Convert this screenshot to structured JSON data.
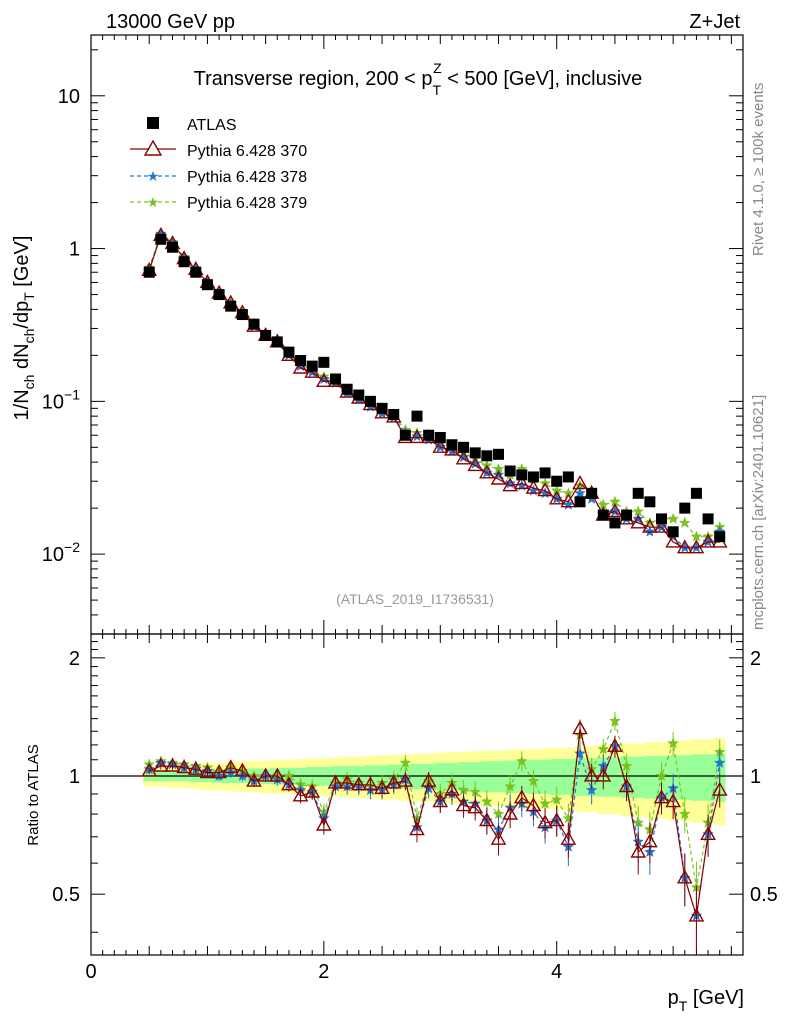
{
  "header": {
    "left": "13000 GeV pp",
    "right": "Z+Jet"
  },
  "side_labels": {
    "rivet": "Rivet 4.1.0, ≥ 100k events",
    "mcplots": "mcplots.cern.ch [arXiv:2401.10621]"
  },
  "colors": {
    "atlas": "#000000",
    "p370": "#8b0000",
    "p378": "#1e78d2",
    "p379": "#7ac31e",
    "band_yellow": "#ffff99",
    "band_green": "#99ff99"
  },
  "chart_data": [
    {
      "type": "scatter",
      "title": "Transverse region, 200 < p_T^Z < 500 [GeV], inclusive",
      "title_parts": {
        "pre": "Transverse region, 200 < p",
        "sup": "Z",
        "sub": "T",
        "post": " < 500 [GeV], inclusive"
      },
      "ylabel": "1/N_ch dN_ch/dp_T [GeV]",
      "ylabel_parts": {
        "a": "1/N",
        "b": "ch",
        "c": " dN",
        "d": "ch",
        "e": "/dp",
        "f": "T",
        "g": " [GeV]"
      },
      "yscale": "log",
      "xlim": [
        0,
        5.6
      ],
      "ylim": [
        0.003,
        25
      ],
      "yticks": [
        {
          "v": 0.01,
          "base": "10",
          "exp": "−2"
        },
        {
          "v": 0.1,
          "base": "10",
          "exp": "−1"
        },
        {
          "v": 1,
          "label": "1"
        },
        {
          "v": 10,
          "label": "10"
        }
      ],
      "watermark": "(ATLAS_2019_I1736531)",
      "legend": [
        {
          "name": "ATLAS",
          "marker": "square",
          "color": "#000000"
        },
        {
          "name": "Pythia 6.428 370",
          "marker": "triangle",
          "color": "#8b0000"
        },
        {
          "name": "Pythia 6.428 378",
          "marker": "star",
          "color": "#1e78d2"
        },
        {
          "name": "Pythia 6.428 379",
          "marker": "star",
          "color": "#7ac31e"
        }
      ],
      "x": [
        0.5,
        0.6,
        0.7,
        0.8,
        0.9,
        1.0,
        1.1,
        1.2,
        1.3,
        1.4,
        1.5,
        1.6,
        1.7,
        1.8,
        1.9,
        2.0,
        2.1,
        2.2,
        2.3,
        2.4,
        2.5,
        2.6,
        2.7,
        2.8,
        2.9,
        3.0,
        3.1,
        3.2,
        3.3,
        3.4,
        3.5,
        3.6,
        3.7,
        3.8,
        3.9,
        4.0,
        4.1,
        4.2,
        4.3,
        4.4,
        4.5,
        4.6,
        4.7,
        4.8,
        4.9,
        5.0,
        5.1,
        5.2,
        5.3,
        5.4
      ],
      "series": [
        {
          "name": "ATLAS",
          "values": [
            0.7,
            1.15,
            1.02,
            0.82,
            0.7,
            0.58,
            0.5,
            0.42,
            0.37,
            0.32,
            0.27,
            0.245,
            0.21,
            0.185,
            0.17,
            0.18,
            0.14,
            0.12,
            0.11,
            0.1,
            0.09,
            0.082,
            0.06,
            0.08,
            0.06,
            0.058,
            0.052,
            0.05,
            0.046,
            0.044,
            0.045,
            0.035,
            0.033,
            0.032,
            0.034,
            0.03,
            0.032,
            0.022,
            0.025,
            0.018,
            0.016,
            0.018,
            0.025,
            0.022,
            0.017,
            0.014,
            0.02,
            0.025,
            0.017,
            0.013
          ]
        },
        {
          "name": "Pythia 6.428 370",
          "values": [
            0.72,
            1.22,
            1.08,
            0.86,
            0.73,
            0.6,
            0.51,
            0.44,
            0.38,
            0.31,
            0.27,
            0.245,
            0.2,
            0.165,
            0.155,
            0.135,
            0.135,
            0.115,
            0.105,
            0.095,
            0.084,
            0.079,
            0.058,
            0.058,
            0.058,
            0.05,
            0.048,
            0.042,
            0.038,
            0.034,
            0.031,
            0.028,
            0.029,
            0.027,
            0.026,
            0.023,
            0.022,
            0.029,
            0.025,
            0.018,
            0.019,
            0.017,
            0.016,
            0.015,
            0.015,
            0.012,
            0.011,
            0.011,
            0.012,
            0.012
          ]
        },
        {
          "name": "Pythia 6.428 378",
          "values": [
            0.73,
            1.24,
            1.09,
            0.86,
            0.73,
            0.6,
            0.5,
            0.43,
            0.37,
            0.31,
            0.27,
            0.24,
            0.2,
            0.17,
            0.155,
            0.14,
            0.132,
            0.113,
            0.103,
            0.092,
            0.083,
            0.078,
            0.062,
            0.059,
            0.056,
            0.05,
            0.047,
            0.043,
            0.039,
            0.034,
            0.033,
            0.029,
            0.028,
            0.026,
            0.025,
            0.023,
            0.021,
            0.025,
            0.023,
            0.019,
            0.019,
            0.017,
            0.017,
            0.014,
            0.015,
            0.013,
            0.011,
            0.011,
            0.012,
            0.014
          ]
        },
        {
          "name": "Pythia 6.428 379",
          "values": [
            0.75,
            1.25,
            1.1,
            0.88,
            0.74,
            0.61,
            0.51,
            0.44,
            0.38,
            0.32,
            0.27,
            0.245,
            0.21,
            0.175,
            0.16,
            0.145,
            0.135,
            0.118,
            0.106,
            0.094,
            0.086,
            0.08,
            0.065,
            0.062,
            0.058,
            0.052,
            0.05,
            0.046,
            0.042,
            0.038,
            0.036,
            0.033,
            0.036,
            0.031,
            0.029,
            0.026,
            0.025,
            0.028,
            0.026,
            0.021,
            0.022,
            0.019,
            0.019,
            0.016,
            0.017,
            0.017,
            0.016,
            0.013,
            0.013,
            0.015
          ]
        }
      ]
    },
    {
      "type": "line",
      "title": "",
      "ylabel": "Ratio to ATLAS",
      "xlabel": "p_T [GeV]",
      "xlabel_parts": {
        "a": "p",
        "b": "T",
        "c": " [GeV]"
      },
      "xlim": [
        0,
        5.6
      ],
      "ylim": [
        0.35,
        2.3
      ],
      "xticks": [
        0,
        2,
        4
      ],
      "yticks": [
        0.5,
        1,
        2
      ],
      "x": [
        0.5,
        0.6,
        0.7,
        0.8,
        0.9,
        1.0,
        1.1,
        1.2,
        1.3,
        1.4,
        1.5,
        1.6,
        1.7,
        1.8,
        1.9,
        2.0,
        2.1,
        2.2,
        2.3,
        2.4,
        2.5,
        2.6,
        2.7,
        2.8,
        2.9,
        3.0,
        3.1,
        3.2,
        3.3,
        3.4,
        3.5,
        3.6,
        3.7,
        3.8,
        3.9,
        4.0,
        4.1,
        4.2,
        4.3,
        4.4,
        4.5,
        4.6,
        4.7,
        4.8,
        4.9,
        5.0,
        5.1,
        5.2,
        5.3,
        5.4
      ],
      "band_inner": [
        0.03,
        0.03,
        0.03,
        0.03,
        0.035,
        0.035,
        0.04,
        0.04,
        0.04,
        0.045,
        0.045,
        0.05,
        0.05,
        0.05,
        0.055,
        0.055,
        0.06,
        0.06,
        0.06,
        0.065,
        0.065,
        0.07,
        0.07,
        0.075,
        0.075,
        0.08,
        0.08,
        0.085,
        0.085,
        0.09,
        0.09,
        0.095,
        0.095,
        0.1,
        0.1,
        0.105,
        0.105,
        0.11,
        0.11,
        0.115,
        0.115,
        0.12,
        0.12,
        0.125,
        0.125,
        0.13,
        0.13,
        0.135,
        0.135,
        0.14
      ],
      "band_outer": [
        0.06,
        0.06,
        0.07,
        0.07,
        0.075,
        0.08,
        0.08,
        0.085,
        0.09,
        0.09,
        0.095,
        0.1,
        0.1,
        0.105,
        0.11,
        0.11,
        0.115,
        0.12,
        0.12,
        0.125,
        0.13,
        0.13,
        0.135,
        0.14,
        0.14,
        0.145,
        0.15,
        0.15,
        0.155,
        0.16,
        0.16,
        0.165,
        0.17,
        0.17,
        0.175,
        0.18,
        0.18,
        0.19,
        0.19,
        0.2,
        0.2,
        0.21,
        0.21,
        0.22,
        0.22,
        0.23,
        0.23,
        0.24,
        0.24,
        0.25
      ],
      "series": [
        {
          "name": "Pythia 6.428 370",
          "values": [
            1.03,
            1.06,
            1.06,
            1.05,
            1.04,
            1.02,
            1.02,
            1.05,
            1.03,
            0.97,
            1.0,
            1.0,
            0.95,
            0.89,
            0.91,
            0.75,
            0.96,
            0.96,
            0.95,
            0.95,
            0.93,
            0.96,
            0.97,
            0.73,
            0.97,
            0.86,
            0.92,
            0.84,
            0.83,
            0.77,
            0.69,
            0.8,
            0.88,
            0.84,
            0.76,
            0.77,
            0.69,
            1.32,
            1.0,
            1.0,
            1.19,
            0.94,
            0.64,
            0.68,
            0.88,
            0.86,
            0.55,
            0.44,
            0.71,
            0.92
          ]
        },
        {
          "name": "Pythia 6.428 378",
          "values": [
            1.04,
            1.08,
            1.07,
            1.05,
            1.04,
            1.03,
            1.0,
            1.02,
            1.0,
            0.97,
            1.0,
            0.98,
            0.95,
            0.92,
            0.91,
            0.78,
            0.94,
            0.94,
            0.94,
            0.92,
            0.92,
            0.95,
            0.98,
            0.74,
            0.93,
            0.86,
            0.9,
            0.86,
            0.85,
            0.77,
            0.73,
            0.83,
            0.85,
            0.81,
            0.74,
            0.77,
            0.66,
            1.14,
            0.92,
            1.06,
            1.19,
            0.94,
            0.68,
            0.64,
            0.88,
            0.93,
            0.55,
            0.44,
            0.71,
            1.08
          ]
        },
        {
          "name": "Pythia 6.428 379",
          "values": [
            1.07,
            1.09,
            1.08,
            1.07,
            1.06,
            1.05,
            1.02,
            1.05,
            1.03,
            1.0,
            1.0,
            1.0,
            1.0,
            0.95,
            0.94,
            0.81,
            0.96,
            0.98,
            0.96,
            0.94,
            0.96,
            0.98,
            1.08,
            0.78,
            0.97,
            0.9,
            0.96,
            0.92,
            0.91,
            0.86,
            0.8,
            0.94,
            1.09,
            0.97,
            0.85,
            0.87,
            0.78,
            1.27,
            1.04,
            1.17,
            1.38,
            1.06,
            0.76,
            0.73,
            1.0,
            1.21,
            0.8,
            0.52,
            0.76,
            1.15
          ]
        }
      ]
    }
  ]
}
